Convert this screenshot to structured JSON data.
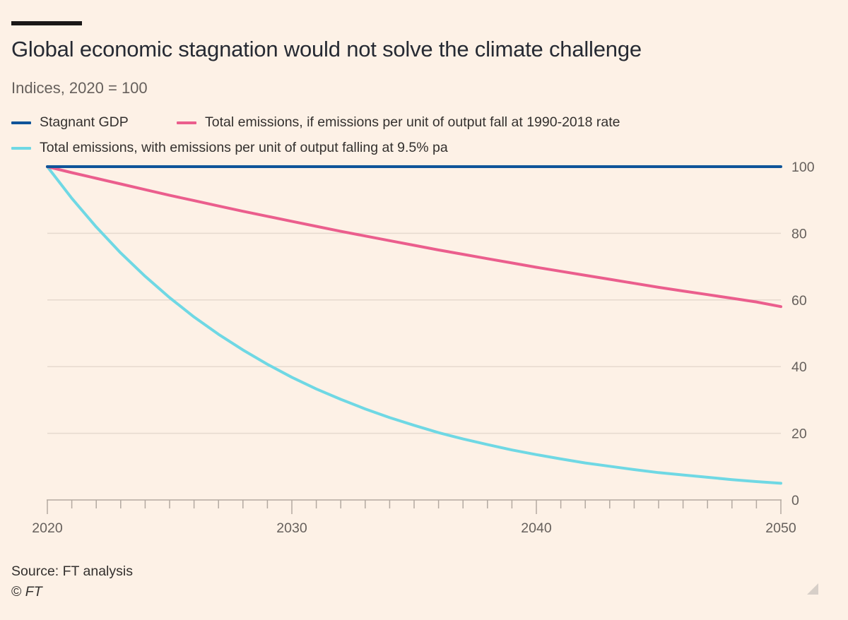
{
  "header": {
    "title": "Global economic stagnation would not solve the climate challenge",
    "subtitle": "Indices, 2020 = 100"
  },
  "legend": [
    {
      "label": "Stagnant GDP",
      "color": "#0f5499"
    },
    {
      "label": "Total emissions, if emissions per unit of output fall at 1990-2018 rate",
      "color": "#eb5e8d"
    },
    {
      "label": "Total emissions, with emissions per unit of output falling at 9.5% pa",
      "color": "#6fd8e4"
    }
  ],
  "footer": {
    "source": "Source: FT analysis",
    "copyright_symbol": "©",
    "copyright_text": "FT"
  },
  "chart_data": {
    "type": "line",
    "title": "Global economic stagnation would not solve the climate challenge",
    "subtitle": "Indices, 2020 = 100",
    "xlabel": "",
    "ylabel": "",
    "xlim": [
      2020,
      2050
    ],
    "ylim": [
      0,
      100
    ],
    "x_ticks": [
      2020,
      2030,
      2040,
      2050
    ],
    "y_ticks": [
      0,
      20,
      40,
      60,
      80,
      100
    ],
    "y_axis_side": "right",
    "grid": "horizontal",
    "legend_position": "top-left",
    "x": [
      2020,
      2021,
      2022,
      2023,
      2024,
      2025,
      2026,
      2027,
      2028,
      2029,
      2030,
      2031,
      2032,
      2033,
      2034,
      2035,
      2036,
      2037,
      2038,
      2039,
      2040,
      2041,
      2042,
      2043,
      2044,
      2045,
      2046,
      2047,
      2048,
      2049,
      2050
    ],
    "series": [
      {
        "name": "Stagnant GDP",
        "color": "#0f5499",
        "values": [
          100,
          100,
          100,
          100,
          100,
          100,
          100,
          100,
          100,
          100,
          100,
          100,
          100,
          100,
          100,
          100,
          100,
          100,
          100,
          100,
          100,
          100,
          100,
          100,
          100,
          100,
          100,
          100,
          100,
          100,
          100
        ]
      },
      {
        "name": "Total emissions, if emissions per unit of output fall at 1990-2018 rate",
        "color": "#eb5e8d",
        "values": [
          100,
          98.2,
          96.5,
          94.8,
          93.1,
          91.4,
          89.8,
          88.2,
          86.6,
          85.1,
          83.6,
          82.1,
          80.6,
          79.2,
          77.8,
          76.4,
          75.0,
          73.7,
          72.4,
          71.1,
          69.8,
          68.6,
          67.4,
          66.2,
          65.0,
          63.8,
          62.7,
          61.6,
          60.5,
          59.4,
          58.0
        ]
      },
      {
        "name": "Total emissions, with emissions per unit of output falling at 9.5% pa",
        "color": "#6fd8e4",
        "values": [
          100,
          90.5,
          81.9,
          74.1,
          67.1,
          60.7,
          54.9,
          49.7,
          45.0,
          40.7,
          36.8,
          33.3,
          30.2,
          27.3,
          24.7,
          22.4,
          20.2,
          18.3,
          16.6,
          15.0,
          13.6,
          12.3,
          11.1,
          10.1,
          9.1,
          8.2,
          7.5,
          6.8,
          6.1,
          5.5,
          5.0
        ]
      }
    ]
  }
}
